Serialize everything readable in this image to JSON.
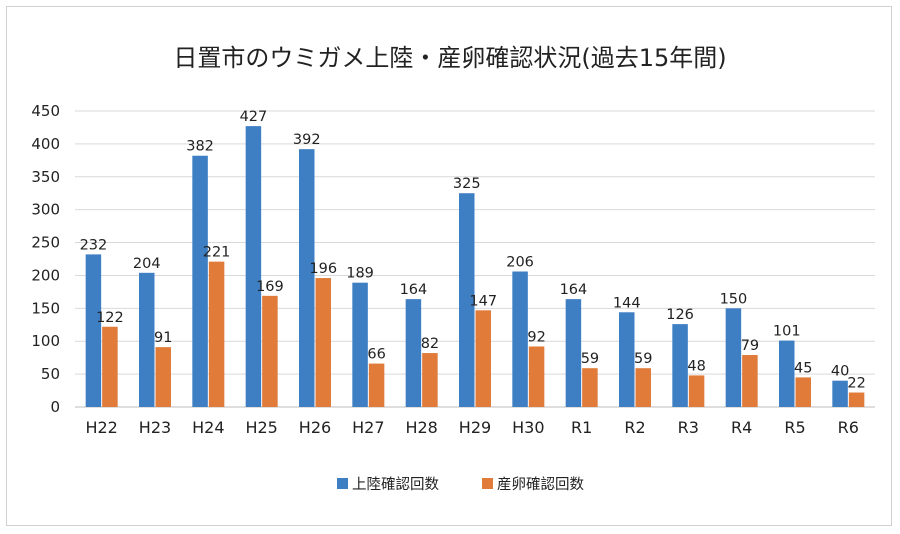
{
  "chart_data": {
    "type": "bar",
    "title": "日置市のウミガメ上陸・産卵確認状況(過去15年間)",
    "categories": [
      "H22",
      "H23",
      "H24",
      "H25",
      "H26",
      "H27",
      "H28",
      "H29",
      "H30",
      "R1",
      "R2",
      "R3",
      "R4",
      "R5",
      "R6"
    ],
    "series": [
      {
        "name": "上陸確認回数",
        "color": "#3E7FC4",
        "values": [
          232,
          204,
          382,
          427,
          392,
          189,
          164,
          325,
          206,
          164,
          144,
          126,
          150,
          101,
          40
        ]
      },
      {
        "name": "産卵確認回数",
        "color": "#E07B39",
        "values": [
          122,
          91,
          221,
          169,
          196,
          66,
          82,
          147,
          92,
          59,
          59,
          48,
          79,
          45,
          22
        ]
      }
    ],
    "ylim": [
      0,
      450
    ],
    "yticks": [
      0,
      50,
      100,
      150,
      200,
      250,
      300,
      350,
      400,
      450
    ],
    "grid": true,
    "legend_position": "bottom"
  }
}
